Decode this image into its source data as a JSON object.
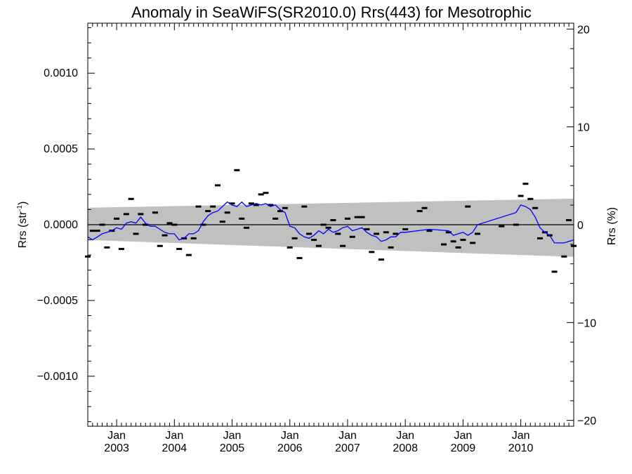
{
  "chart_data": {
    "type": "scatter",
    "title": "Anomaly in SeaWiFS(SR2010.0) Rrs(443) for Mesotrophic",
    "ylabel_left_prefix": "Rrs (str",
    "ylabel_left_sup": "-1",
    "ylabel_left_suffix": ")",
    "ylabel_right": "Rrs (%)",
    "x_range": [
      2002.5,
      2010.917
    ],
    "y_range": [
      -0.00133,
      0.00133
    ],
    "y2_range": [
      -20.6,
      20.6
    ],
    "y_ticks": [
      {
        "value": 0.001,
        "label": "0.0010"
      },
      {
        "value": 0.0005,
        "label": "0.0005"
      },
      {
        "value": 0.0,
        "label": "0.0000"
      },
      {
        "value": -0.0005,
        "label": "−0.0005"
      },
      {
        "value": -0.001,
        "label": "−0.0010"
      }
    ],
    "y2_ticks": [
      {
        "value": 20,
        "label": "20"
      },
      {
        "value": 10,
        "label": "10"
      },
      {
        "value": 0,
        "label": "0"
      },
      {
        "value": -10,
        "label": "−10"
      },
      {
        "value": -20,
        "label": "−20"
      }
    ],
    "x_ticks": [
      {
        "value": 2003.0,
        "month": "Jan",
        "year": "2003"
      },
      {
        "value": 2004.0,
        "month": "Jan",
        "year": "2004"
      },
      {
        "value": 2005.0,
        "month": "Jan",
        "year": "2005"
      },
      {
        "value": 2006.0,
        "month": "Jan",
        "year": "2006"
      },
      {
        "value": 2007.0,
        "month": "Jan",
        "year": "2007"
      },
      {
        "value": 2008.0,
        "month": "Jan",
        "year": "2008"
      },
      {
        "value": 2009.0,
        "month": "Jan",
        "year": "2009"
      },
      {
        "value": 2010.0,
        "month": "Jan",
        "year": "2010"
      }
    ],
    "band": {
      "upper": [
        [
          2002.5,
          0.000112
        ],
        [
          2010.917,
          0.000172
        ]
      ],
      "lower": [
        [
          2002.5,
          -0.000101
        ],
        [
          2010.917,
          -0.000212
        ]
      ]
    },
    "zero_line": 0,
    "points": [
      [
        2002.5,
        -0.00021
      ],
      [
        2002.583,
        -4e-05
      ],
      [
        2002.667,
        -4e-05
      ],
      [
        2002.75,
        0.0
      ],
      [
        2002.833,
        -0.00015
      ],
      [
        2002.917,
        -4e-05
      ],
      [
        2003.0,
        4e-05
      ],
      [
        2003.083,
        -0.00016
      ],
      [
        2003.167,
        7e-05
      ],
      [
        2003.25,
        0.00017
      ],
      [
        2003.333,
        -6e-05
      ],
      [
        2003.417,
        7e-05
      ],
      [
        2003.5,
        0.0
      ],
      [
        2003.667,
        8e-05
      ],
      [
        2003.75,
        -0.00014
      ],
      [
        2003.833,
        -7e-05
      ],
      [
        2003.917,
        1e-05
      ],
      [
        2004.0,
        0.0
      ],
      [
        2004.083,
        -0.00016
      ],
      [
        2004.167,
        -9e-05
      ],
      [
        2004.25,
        -0.0002
      ],
      [
        2004.333,
        -9e-05
      ],
      [
        2004.417,
        0.00012
      ],
      [
        2004.5,
        0.0
      ],
      [
        2004.583,
        9e-05
      ],
      [
        2004.667,
        0.00012
      ],
      [
        2004.75,
        0.00026
      ],
      [
        2004.833,
        2e-05
      ],
      [
        2004.917,
        8e-05
      ],
      [
        2005.0,
        0.00014
      ],
      [
        2005.083,
        0.00036
      ],
      [
        2005.167,
        4e-05
      ],
      [
        2005.25,
        -2e-05
      ],
      [
        2005.333,
        0.00014
      ],
      [
        2005.417,
        0.00013
      ],
      [
        2005.5,
        0.0002
      ],
      [
        2005.583,
        0.00021
      ],
      [
        2005.667,
        0.00013
      ],
      [
        2005.75,
        4e-05
      ],
      [
        2005.833,
        9e-05
      ],
      [
        2005.917,
        0.00011
      ],
      [
        2006.0,
        -0.00015
      ],
      [
        2006.083,
        -9e-05
      ],
      [
        2006.167,
        -0.00022
      ],
      [
        2006.25,
        0.00012
      ],
      [
        2006.333,
        -6e-05
      ],
      [
        2006.417,
        -0.0001
      ],
      [
        2006.5,
        -0.00014
      ],
      [
        2006.583,
        0.0
      ],
      [
        2006.667,
        -2e-05
      ],
      [
        2006.75,
        3e-05
      ],
      [
        2006.833,
        -6e-05
      ],
      [
        2006.917,
        -0.00014
      ],
      [
        2007.0,
        4e-05
      ],
      [
        2007.083,
        -8e-05
      ],
      [
        2007.167,
        5e-05
      ],
      [
        2007.25,
        5e-05
      ],
      [
        2007.333,
        -3e-05
      ],
      [
        2007.417,
        -0.00018
      ],
      [
        2007.5,
        -6e-05
      ],
      [
        2007.583,
        -0.00023
      ],
      [
        2007.667,
        -5e-05
      ],
      [
        2007.75,
        -0.00015
      ],
      [
        2007.833,
        -6e-05
      ],
      [
        2008.0,
        -3e-05
      ],
      [
        2008.25,
        9e-05
      ],
      [
        2008.333,
        0.00011
      ],
      [
        2008.417,
        -4e-05
      ],
      [
        2008.667,
        -0.00013
      ],
      [
        2008.75,
        -5e-05
      ],
      [
        2008.833,
        -0.00011
      ],
      [
        2008.917,
        -0.00015
      ],
      [
        2009.0,
        -0.0001
      ],
      [
        2009.083,
        0.00012
      ],
      [
        2009.167,
        -0.00012
      ],
      [
        2009.25,
        -6e-05
      ],
      [
        2009.667,
        -1e-05
      ],
      [
        2009.917,
        0.0
      ],
      [
        2010.0,
        0.00019
      ],
      [
        2010.083,
        0.00027
      ],
      [
        2010.167,
        0.00017
      ],
      [
        2010.25,
        0.00011
      ],
      [
        2010.333,
        -9e-05
      ],
      [
        2010.417,
        -5e-05
      ],
      [
        2010.5,
        -7e-05
      ],
      [
        2010.583,
        -0.00031
      ],
      [
        2010.75,
        -0.00021
      ],
      [
        2010.833,
        3e-05
      ],
      [
        2010.917,
        -0.00014
      ]
    ],
    "running_mean": [
      [
        2002.5,
        -8e-05
      ],
      [
        2002.583,
        -0.0001
      ],
      [
        2002.667,
        -8e-05
      ],
      [
        2002.75,
        -6e-05
      ],
      [
        2002.833,
        -5e-05
      ],
      [
        2002.917,
        -4e-05
      ],
      [
        2003.0,
        -2e-05
      ],
      [
        2003.083,
        -3e-05
      ],
      [
        2003.167,
        1e-05
      ],
      [
        2003.25,
        2e-05
      ],
      [
        2003.333,
        1e-05
      ],
      [
        2003.417,
        5e-05
      ],
      [
        2003.5,
        1e-05
      ],
      [
        2003.583,
        -1e-05
      ],
      [
        2003.667,
        -1e-05
      ],
      [
        2003.75,
        -3e-05
      ],
      [
        2003.833,
        -5e-05
      ],
      [
        2003.917,
        -6e-05
      ],
      [
        2004.0,
        -6e-05
      ],
      [
        2004.083,
        -0.0001
      ],
      [
        2004.167,
        -9e-05
      ],
      [
        2004.25,
        -6e-05
      ],
      [
        2004.333,
        -6e-05
      ],
      [
        2004.417,
        -4e-05
      ],
      [
        2004.5,
        2e-05
      ],
      [
        2004.583,
        6e-05
      ],
      [
        2004.667,
        8e-05
      ],
      [
        2004.75,
        9e-05
      ],
      [
        2004.833,
        0.00012
      ],
      [
        2004.917,
        0.00015
      ],
      [
        2005.0,
        0.00013
      ],
      [
        2005.083,
        0.00012
      ],
      [
        2005.167,
        0.00015
      ],
      [
        2005.25,
        0.00012
      ],
      [
        2005.333,
        0.00013
      ],
      [
        2005.417,
        0.00014
      ],
      [
        2005.5,
        0.00013
      ],
      [
        2005.583,
        0.00014
      ],
      [
        2005.667,
        0.00012
      ],
      [
        2005.75,
        0.00013
      ],
      [
        2005.833,
        0.0001
      ],
      [
        2005.917,
        8e-05
      ],
      [
        2006.0,
        -1e-05
      ],
      [
        2006.083,
        -2e-05
      ],
      [
        2006.167,
        -6e-05
      ],
      [
        2006.25,
        -8e-05
      ],
      [
        2006.333,
        -9e-05
      ],
      [
        2006.417,
        -7e-05
      ],
      [
        2006.5,
        -4e-05
      ],
      [
        2006.583,
        -6e-05
      ],
      [
        2006.667,
        -3e-05
      ],
      [
        2006.75,
        -5e-05
      ],
      [
        2006.833,
        -4e-05
      ],
      [
        2006.917,
        -2e-05
      ],
      [
        2007.0,
        -1e-05
      ],
      [
        2007.083,
        -4e-05
      ],
      [
        2007.167,
        -3e-05
      ],
      [
        2007.25,
        -2e-05
      ],
      [
        2007.333,
        -5e-05
      ],
      [
        2007.417,
        -7e-05
      ],
      [
        2007.5,
        -8e-05
      ],
      [
        2007.583,
        -0.00011
      ],
      [
        2007.667,
        -0.0001
      ],
      [
        2007.75,
        -8e-05
      ],
      [
        2007.833,
        -8e-05
      ],
      [
        2007.917,
        -5e-05
      ],
      [
        2008.0,
        -5e-05
      ],
      [
        2008.417,
        -3e-05
      ],
      [
        2008.75,
        -4e-05
      ],
      [
        2008.833,
        -7e-05
      ],
      [
        2008.917,
        -6e-05
      ],
      [
        2009.0,
        -5e-05
      ],
      [
        2009.083,
        -7e-05
      ],
      [
        2009.167,
        -5e-05
      ],
      [
        2009.25,
        0.0
      ],
      [
        2009.917,
        8e-05
      ],
      [
        2010.0,
        0.00013
      ],
      [
        2010.083,
        0.00012
      ],
      [
        2010.167,
        0.0001
      ],
      [
        2010.25,
        5e-05
      ],
      [
        2010.333,
        -2e-05
      ],
      [
        2010.417,
        -5e-05
      ],
      [
        2010.5,
        -7e-05
      ],
      [
        2010.583,
        -0.00012
      ],
      [
        2010.75,
        -0.00012
      ],
      [
        2010.833,
        -0.00011
      ],
      [
        2010.917,
        -0.0001
      ]
    ],
    "grid": false,
    "colors": {
      "band": "#c0c0c0",
      "running_mean": "#0000ff",
      "points": "#000000",
      "axes": "#000000",
      "zero_line": "#000000"
    }
  }
}
